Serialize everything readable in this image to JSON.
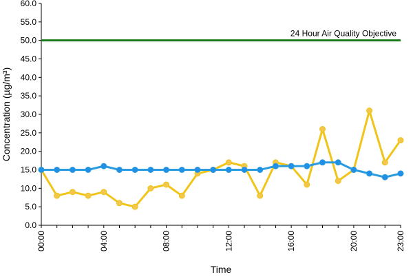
{
  "chart_data": {
    "type": "line",
    "title": "",
    "xlabel": "Time",
    "ylabel": "Concentration (µg/m³)",
    "ylim": [
      0,
      60
    ],
    "y_ticks": [
      "0.0",
      "5.0",
      "10.0",
      "15.0",
      "20.0",
      "25.0",
      "30.0",
      "35.0",
      "40.0",
      "45.0",
      "50.0",
      "55.0",
      "60.0"
    ],
    "x": [
      "00:00",
      "01:00",
      "02:00",
      "03:00",
      "04:00",
      "05:00",
      "06:00",
      "07:00",
      "08:00",
      "09:00",
      "10:00",
      "11:00",
      "12:00",
      "13:00",
      "14:00",
      "15:00",
      "16:00",
      "17:00",
      "18:00",
      "19:00",
      "20:00",
      "21:00",
      "22:00",
      "23:00"
    ],
    "x_tick_labels": [
      "00:00",
      "04:00",
      "08:00",
      "12:00",
      "16:00",
      "20:00",
      "23:00"
    ],
    "grid": false,
    "legend": "none",
    "series": [
      {
        "color": "#f0c419",
        "marker_fill": "#f3c84a",
        "values": [
          15,
          8,
          9,
          8,
          9,
          6,
          5,
          10,
          11,
          8,
          14,
          15,
          17,
          16,
          8,
          17,
          16,
          11,
          26,
          12,
          15,
          31,
          17,
          23
        ]
      },
      {
        "color": "#2b9be0",
        "marker_fill": "#1f90e6",
        "values": [
          15,
          15,
          15,
          15,
          16,
          15,
          15,
          15,
          15,
          15,
          15,
          15,
          15,
          15,
          15,
          16,
          16,
          16,
          17,
          17,
          15,
          14,
          13,
          14
        ]
      }
    ],
    "reference_line": {
      "value": 50,
      "label": "24 Hour Air Quality Objective",
      "color": "#1a7a1a"
    }
  }
}
